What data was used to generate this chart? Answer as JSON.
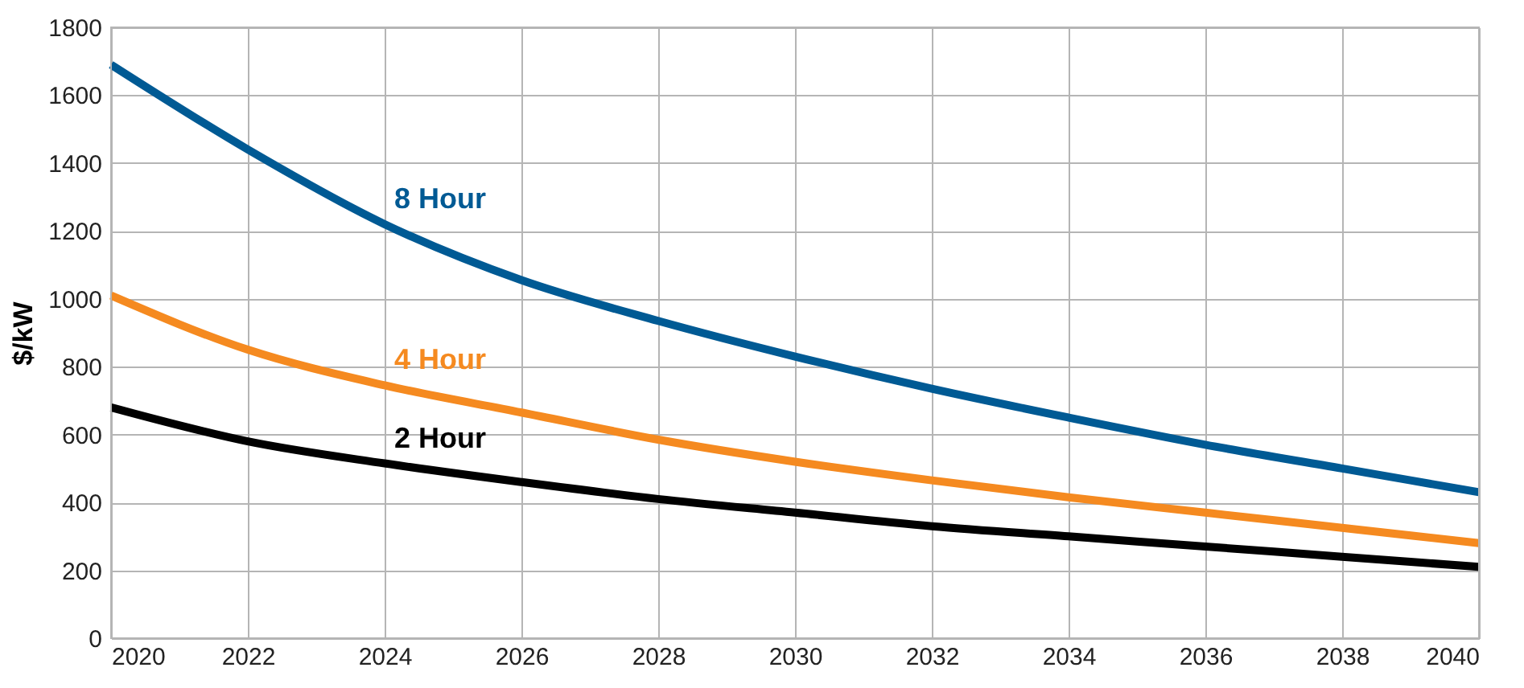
{
  "chart_data": {
    "type": "line",
    "ylabel": "$/kW",
    "x": [
      2020,
      2022,
      2024,
      2026,
      2028,
      2030,
      2032,
      2034,
      2036,
      2038,
      2040
    ],
    "series": [
      {
        "name": "8 Hour",
        "color": "#005a94",
        "values": [
          1690,
          1440,
          1220,
          1055,
          935,
          830,
          735,
          650,
          570,
          500,
          430
        ]
      },
      {
        "name": "4 Hour",
        "color": "#f58a20",
        "values": [
          1010,
          850,
          745,
          665,
          585,
          520,
          465,
          415,
          370,
          325,
          280
        ]
      },
      {
        "name": "2 Hour",
        "color": "#000000",
        "values": [
          680,
          580,
          515,
          460,
          410,
          370,
          330,
          300,
          270,
          240,
          210
        ]
      }
    ],
    "xlim": [
      2020,
      2040
    ],
    "xticks": [
      2020,
      2022,
      2024,
      2026,
      2028,
      2030,
      2032,
      2034,
      2036,
      2038,
      2040
    ],
    "ylim": [
      0,
      1800
    ],
    "yticks": [
      0,
      200,
      400,
      600,
      800,
      1000,
      1200,
      1400,
      1600,
      1800
    ],
    "grid": true,
    "legend": false,
    "marker": "none",
    "line_style": "solid"
  }
}
